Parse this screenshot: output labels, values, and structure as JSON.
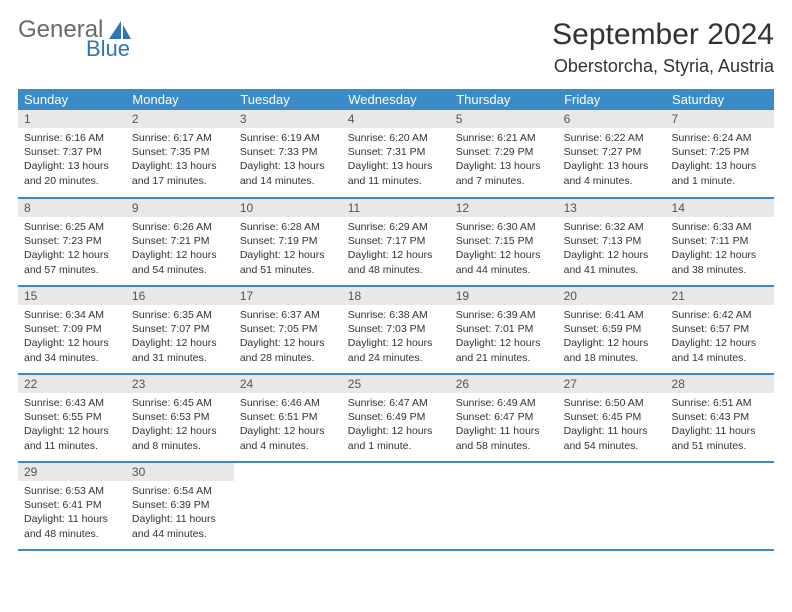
{
  "logo": {
    "text1": "General",
    "text2": "Blue",
    "color1": "#6a6a6a",
    "color2": "#2e75b6",
    "icon_color": "#2e75b6"
  },
  "header": {
    "month": "September 2024",
    "location": "Oberstorcha, Styria, Austria"
  },
  "style": {
    "header_bg": "#3b8bc9",
    "header_fg": "#ffffff",
    "cell_border": "#3b8bc9",
    "daynum_bg": "#e8e8e8",
    "body_fontsize": 10.5
  },
  "weekdays": [
    "Sunday",
    "Monday",
    "Tuesday",
    "Wednesday",
    "Thursday",
    "Friday",
    "Saturday"
  ],
  "days": [
    {
      "n": 1,
      "sunrise": "6:16 AM",
      "sunset": "7:37 PM",
      "daylight": "13 hours and 20 minutes."
    },
    {
      "n": 2,
      "sunrise": "6:17 AM",
      "sunset": "7:35 PM",
      "daylight": "13 hours and 17 minutes."
    },
    {
      "n": 3,
      "sunrise": "6:19 AM",
      "sunset": "7:33 PM",
      "daylight": "13 hours and 14 minutes."
    },
    {
      "n": 4,
      "sunrise": "6:20 AM",
      "sunset": "7:31 PM",
      "daylight": "13 hours and 11 minutes."
    },
    {
      "n": 5,
      "sunrise": "6:21 AM",
      "sunset": "7:29 PM",
      "daylight": "13 hours and 7 minutes."
    },
    {
      "n": 6,
      "sunrise": "6:22 AM",
      "sunset": "7:27 PM",
      "daylight": "13 hours and 4 minutes."
    },
    {
      "n": 7,
      "sunrise": "6:24 AM",
      "sunset": "7:25 PM",
      "daylight": "13 hours and 1 minute."
    },
    {
      "n": 8,
      "sunrise": "6:25 AM",
      "sunset": "7:23 PM",
      "daylight": "12 hours and 57 minutes."
    },
    {
      "n": 9,
      "sunrise": "6:26 AM",
      "sunset": "7:21 PM",
      "daylight": "12 hours and 54 minutes."
    },
    {
      "n": 10,
      "sunrise": "6:28 AM",
      "sunset": "7:19 PM",
      "daylight": "12 hours and 51 minutes."
    },
    {
      "n": 11,
      "sunrise": "6:29 AM",
      "sunset": "7:17 PM",
      "daylight": "12 hours and 48 minutes."
    },
    {
      "n": 12,
      "sunrise": "6:30 AM",
      "sunset": "7:15 PM",
      "daylight": "12 hours and 44 minutes."
    },
    {
      "n": 13,
      "sunrise": "6:32 AM",
      "sunset": "7:13 PM",
      "daylight": "12 hours and 41 minutes."
    },
    {
      "n": 14,
      "sunrise": "6:33 AM",
      "sunset": "7:11 PM",
      "daylight": "12 hours and 38 minutes."
    },
    {
      "n": 15,
      "sunrise": "6:34 AM",
      "sunset": "7:09 PM",
      "daylight": "12 hours and 34 minutes."
    },
    {
      "n": 16,
      "sunrise": "6:35 AM",
      "sunset": "7:07 PM",
      "daylight": "12 hours and 31 minutes."
    },
    {
      "n": 17,
      "sunrise": "6:37 AM",
      "sunset": "7:05 PM",
      "daylight": "12 hours and 28 minutes."
    },
    {
      "n": 18,
      "sunrise": "6:38 AM",
      "sunset": "7:03 PM",
      "daylight": "12 hours and 24 minutes."
    },
    {
      "n": 19,
      "sunrise": "6:39 AM",
      "sunset": "7:01 PM",
      "daylight": "12 hours and 21 minutes."
    },
    {
      "n": 20,
      "sunrise": "6:41 AM",
      "sunset": "6:59 PM",
      "daylight": "12 hours and 18 minutes."
    },
    {
      "n": 21,
      "sunrise": "6:42 AM",
      "sunset": "6:57 PM",
      "daylight": "12 hours and 14 minutes."
    },
    {
      "n": 22,
      "sunrise": "6:43 AM",
      "sunset": "6:55 PM",
      "daylight": "12 hours and 11 minutes."
    },
    {
      "n": 23,
      "sunrise": "6:45 AM",
      "sunset": "6:53 PM",
      "daylight": "12 hours and 8 minutes."
    },
    {
      "n": 24,
      "sunrise": "6:46 AM",
      "sunset": "6:51 PM",
      "daylight": "12 hours and 4 minutes."
    },
    {
      "n": 25,
      "sunrise": "6:47 AM",
      "sunset": "6:49 PM",
      "daylight": "12 hours and 1 minute."
    },
    {
      "n": 26,
      "sunrise": "6:49 AM",
      "sunset": "6:47 PM",
      "daylight": "11 hours and 58 minutes."
    },
    {
      "n": 27,
      "sunrise": "6:50 AM",
      "sunset": "6:45 PM",
      "daylight": "11 hours and 54 minutes."
    },
    {
      "n": 28,
      "sunrise": "6:51 AM",
      "sunset": "6:43 PM",
      "daylight": "11 hours and 51 minutes."
    },
    {
      "n": 29,
      "sunrise": "6:53 AM",
      "sunset": "6:41 PM",
      "daylight": "11 hours and 48 minutes."
    },
    {
      "n": 30,
      "sunrise": "6:54 AM",
      "sunset": "6:39 PM",
      "daylight": "11 hours and 44 minutes."
    }
  ],
  "labels": {
    "sunrise": "Sunrise:",
    "sunset": "Sunset:",
    "daylight": "Daylight:"
  },
  "start_weekday": 0
}
